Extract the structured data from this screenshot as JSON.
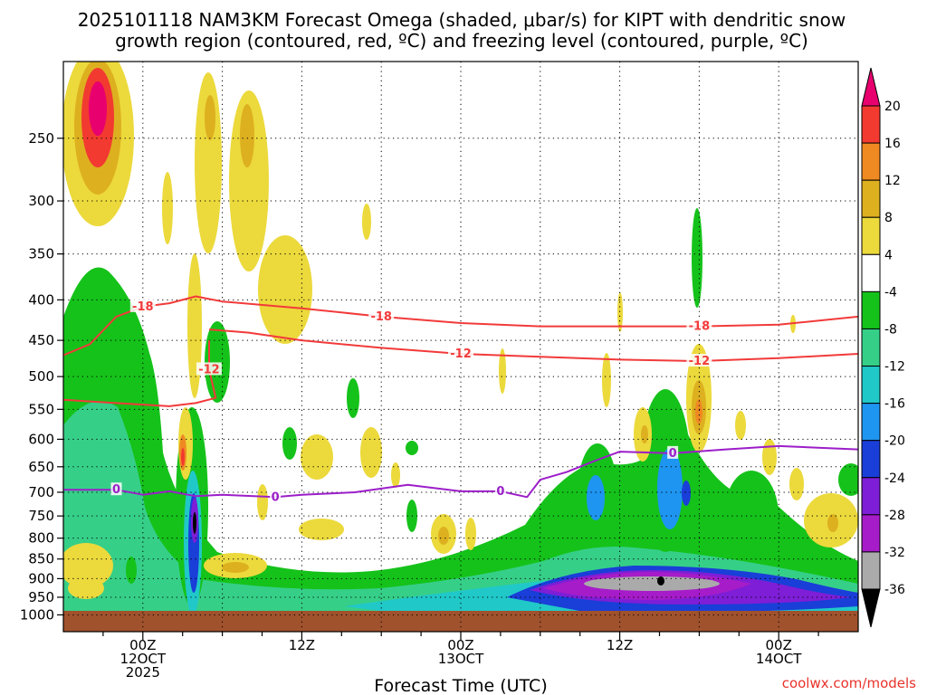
{
  "chart_data": {
    "type": "heatmap",
    "title_line1": "2025101118 NAM3KM Forecast Omega (shaded, μbar/s) for KIPT with dendritic snow",
    "title_line2": "growth region (contoured, red, ºC) and freezing level (contoured, purple, ºC)",
    "xlabel": "Forecast Time (UTC)",
    "credit": "coolwx.com/models",
    "x_range_hours": [
      0,
      60
    ],
    "y_range_hpa": [
      200,
      1050
    ],
    "y_scale": "log",
    "y_ticks": [
      "250",
      "300",
      "350",
      "400",
      "450",
      "500",
      "550",
      "600",
      "650",
      "700",
      "750",
      "800",
      "850",
      "900",
      "950",
      "1000"
    ],
    "x_ticks": [
      {
        "hour": 6,
        "lines": [
          "00Z",
          "12OCT",
          "2025"
        ]
      },
      {
        "hour": 18,
        "lines": [
          "12Z"
        ]
      },
      {
        "hour": 30,
        "lines": [
          "00Z",
          "13OCT"
        ]
      },
      {
        "hour": 42,
        "lines": [
          "12Z"
        ]
      },
      {
        "hour": 54,
        "lines": [
          "00Z",
          "14OCT"
        ]
      }
    ],
    "grid": "dotted",
    "colorbar": {
      "labels": [
        "20",
        "16",
        "12",
        "8",
        "4",
        "-4",
        "-8",
        "-12",
        "-16",
        "-20",
        "-24",
        "-28",
        "-32",
        "-36"
      ],
      "colors": [
        "#e8006e",
        "#f23a30",
        "#ef8a22",
        "#ddb020",
        "#ecd93c",
        "#ffffff",
        "#15c21a",
        "#36cf88",
        "#20c8c8",
        "#1e95f0",
        "#1a3ed8",
        "#7e1ed6",
        "#a61cc9",
        "#aaaaaa",
        "#000000"
      ]
    },
    "contours": [
      {
        "label": "-18",
        "color": "#f23a3a",
        "points": [
          [
            0,
            470
          ],
          [
            2,
            455
          ],
          [
            4,
            420
          ],
          [
            6,
            408
          ],
          [
            8,
            404
          ],
          [
            10,
            396
          ],
          [
            12,
            402
          ],
          [
            18,
            410
          ],
          [
            24,
            420
          ],
          [
            30,
            428
          ],
          [
            36,
            432
          ],
          [
            42,
            432
          ],
          [
            48,
            432
          ],
          [
            54,
            430
          ],
          [
            60,
            420
          ]
        ]
      },
      {
        "label": "-12",
        "color": "#f23a3a",
        "points": [
          [
            11,
            436
          ],
          [
            14,
            440
          ],
          [
            18,
            450
          ],
          [
            24,
            460
          ],
          [
            30,
            468
          ],
          [
            36,
            472
          ],
          [
            42,
            476
          ],
          [
            48,
            478
          ],
          [
            54,
            474
          ],
          [
            60,
            468
          ]
        ]
      },
      {
        "label": "-12",
        "color": "#f23a3a",
        "points": [
          [
            0,
            535
          ],
          [
            4,
            540
          ],
          [
            8,
            545
          ],
          [
            10,
            540
          ],
          [
            11.5,
            532
          ],
          [
            11,
            490
          ],
          [
            11,
            450
          ]
        ]
      },
      {
        "label": "0",
        "color": "#9c1ec9",
        "points": [
          [
            0,
            695
          ],
          [
            4,
            695
          ],
          [
            6,
            705
          ],
          [
            8,
            698
          ],
          [
            10,
            708
          ],
          [
            12,
            705
          ],
          [
            16,
            710
          ],
          [
            18,
            705
          ],
          [
            22,
            700
          ],
          [
            26,
            685
          ],
          [
            30,
            698
          ],
          [
            33,
            698
          ],
          [
            35,
            710
          ],
          [
            36,
            675
          ],
          [
            38,
            660
          ],
          [
            40,
            640
          ],
          [
            42,
            622
          ],
          [
            46,
            625
          ],
          [
            50,
            618
          ],
          [
            54,
            612
          ],
          [
            60,
            618
          ]
        ]
      }
    ],
    "cells": [
      {
        "t": 3,
        "p": 240,
        "v": 12,
        "w": 3,
        "h": 90
      },
      {
        "t": 3,
        "p": 225,
        "v": 20,
        "w": 1.2,
        "h": 35
      },
      {
        "t": 10,
        "p": 600,
        "v": 12,
        "w": 0.8,
        "h": 120
      },
      {
        "t": 10,
        "p": 760,
        "v": -36,
        "w": 0.6,
        "h": 35
      },
      {
        "t": 44,
        "p": 910,
        "v": -36,
        "w": 8,
        "h": 25
      },
      {
        "t": 46.5,
        "p": 555,
        "v": 12,
        "w": 1,
        "h": 60
      },
      {
        "t": 29,
        "p": 810,
        "v": 8,
        "w": 1.2,
        "h": 40
      },
      {
        "t": 45,
        "p": 710,
        "v": -20,
        "w": 0.8,
        "h": 60
      }
    ]
  }
}
